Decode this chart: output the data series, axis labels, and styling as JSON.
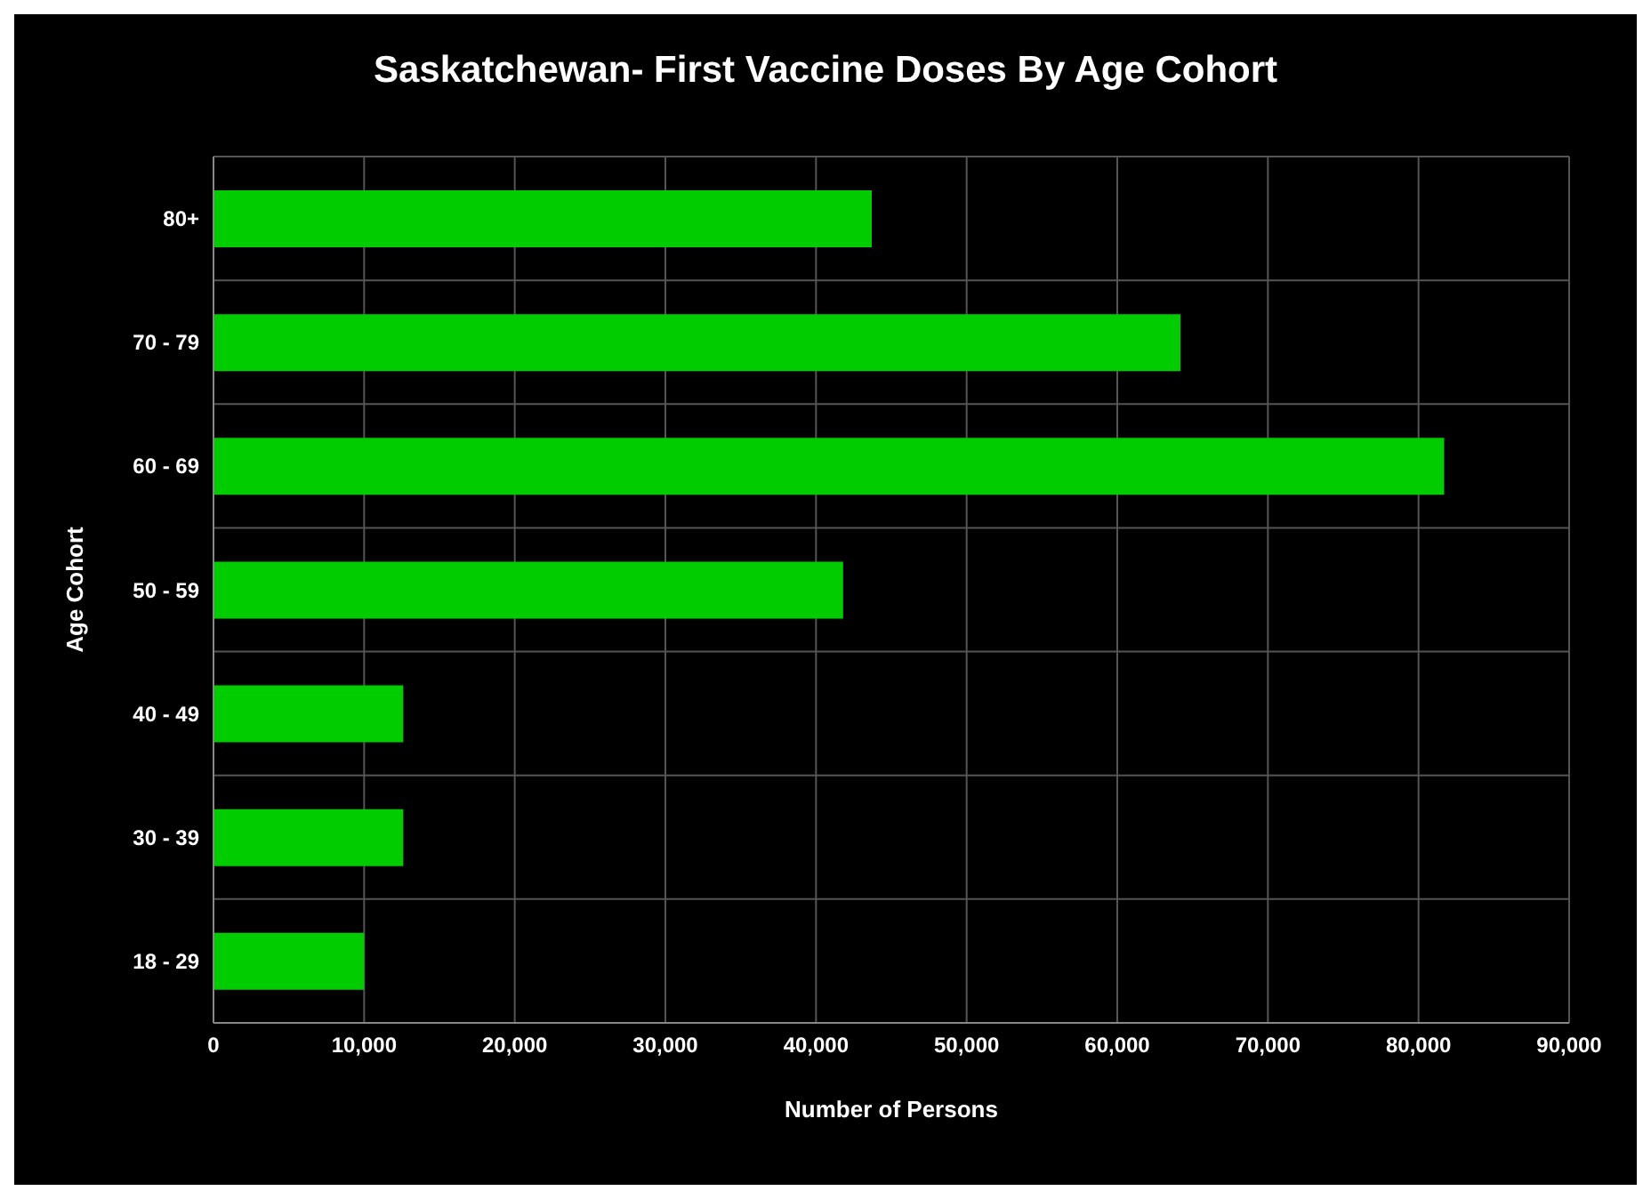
{
  "chart_data": {
    "type": "bar",
    "orientation": "horizontal",
    "title": "Saskatchewan- First Vaccine Doses By Age Cohort",
    "xlabel": "Number of Persons",
    "ylabel": "Age Cohort",
    "categories": [
      "80+",
      "70 - 79",
      "60 - 69",
      "50 - 59",
      "40 - 49",
      "30 - 39",
      "18 - 29"
    ],
    "series": [
      {
        "color": "#00cc00",
        "values": [
          43700,
          64200,
          81700,
          41800,
          12600,
          12600,
          10000
        ]
      }
    ],
    "xlim": [
      0,
      90000
    ],
    "xticks": [
      0,
      {
        "value": 10000,
        "label": "10,000"
      },
      {
        "value": 20000,
        "label": "20,000"
      },
      {
        "value": 30000,
        "label": "30,000"
      },
      {
        "value": 40000,
        "label": "40,000"
      },
      {
        "value": 50000,
        "label": "50,000"
      },
      {
        "value": 60000,
        "label": "60,000"
      },
      {
        "value": 70000,
        "label": "70,000"
      },
      {
        "value": 80000,
        "label": "80,000"
      },
      {
        "value": 90000,
        "label": "90,000"
      }
    ],
    "grid": true,
    "legend": false
  }
}
